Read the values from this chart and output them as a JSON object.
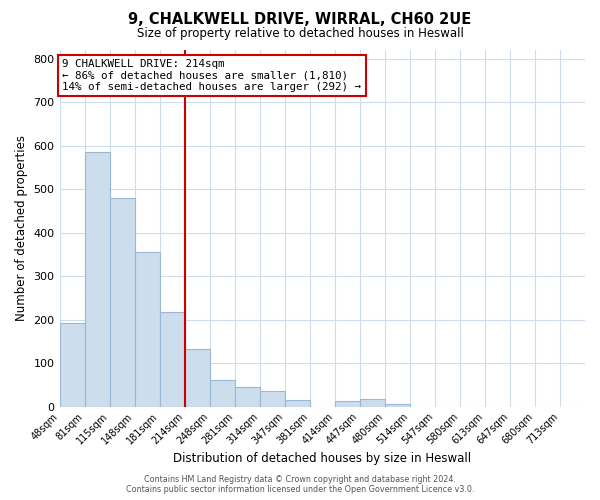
{
  "title": "9, CHALKWELL DRIVE, WIRRAL, CH60 2UE",
  "subtitle": "Size of property relative to detached houses in Heswall",
  "xlabel": "Distribution of detached houses by size in Heswall",
  "ylabel": "Number of detached properties",
  "bin_labels": [
    "48sqm",
    "81sqm",
    "115sqm",
    "148sqm",
    "181sqm",
    "214sqm",
    "248sqm",
    "281sqm",
    "314sqm",
    "347sqm",
    "381sqm",
    "414sqm",
    "447sqm",
    "480sqm",
    "514sqm",
    "547sqm",
    "580sqm",
    "613sqm",
    "647sqm",
    "680sqm",
    "713sqm"
  ],
  "bar_heights": [
    193,
    585,
    480,
    355,
    218,
    133,
    62,
    46,
    37,
    15,
    0,
    12,
    17,
    7,
    0,
    0,
    0,
    0,
    0,
    0
  ],
  "bar_color": "#ccdded",
  "bar_edgecolor": "#9ab8d4",
  "ylim": [
    0,
    820
  ],
  "yticks": [
    0,
    100,
    200,
    300,
    400,
    500,
    600,
    700,
    800
  ],
  "marker_bin_index": 5,
  "marker_color": "#cc0000",
  "annotation_title": "9 CHALKWELL DRIVE: 214sqm",
  "annotation_line1": "← 86% of detached houses are smaller (1,810)",
  "annotation_line2": "14% of semi-detached houses are larger (292) →",
  "annotation_box_color": "#ffffff",
  "annotation_box_edgecolor": "#cc0000",
  "footer1": "Contains HM Land Registry data © Crown copyright and database right 2024.",
  "footer2": "Contains public sector information licensed under the Open Government Licence v3.0.",
  "background_color": "#ffffff",
  "grid_color": "#d0dcea"
}
